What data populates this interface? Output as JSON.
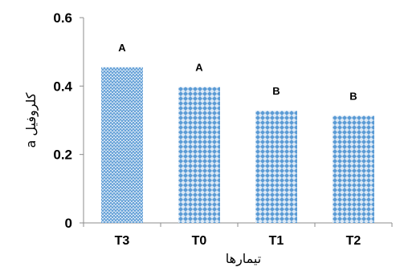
{
  "chart_data": {
    "type": "bar",
    "categories": [
      "T3",
      "T0",
      "T1",
      "T2"
    ],
    "values": [
      0.455,
      0.397,
      0.328,
      0.313
    ],
    "group_labels": [
      "A",
      "A",
      "B",
      "B"
    ],
    "ylabel": "کلروفیل a",
    "xlabel": "تیمارها",
    "ylim": [
      0,
      0.6
    ],
    "yticks": [
      0,
      0.2,
      0.4,
      0.6
    ],
    "ytick_labels": [
      "0",
      "0.2",
      "0.4",
      "0.6"
    ],
    "grid": false,
    "bar_color": "#5b9bd5",
    "bar_bg_color": "#dce9f6"
  }
}
